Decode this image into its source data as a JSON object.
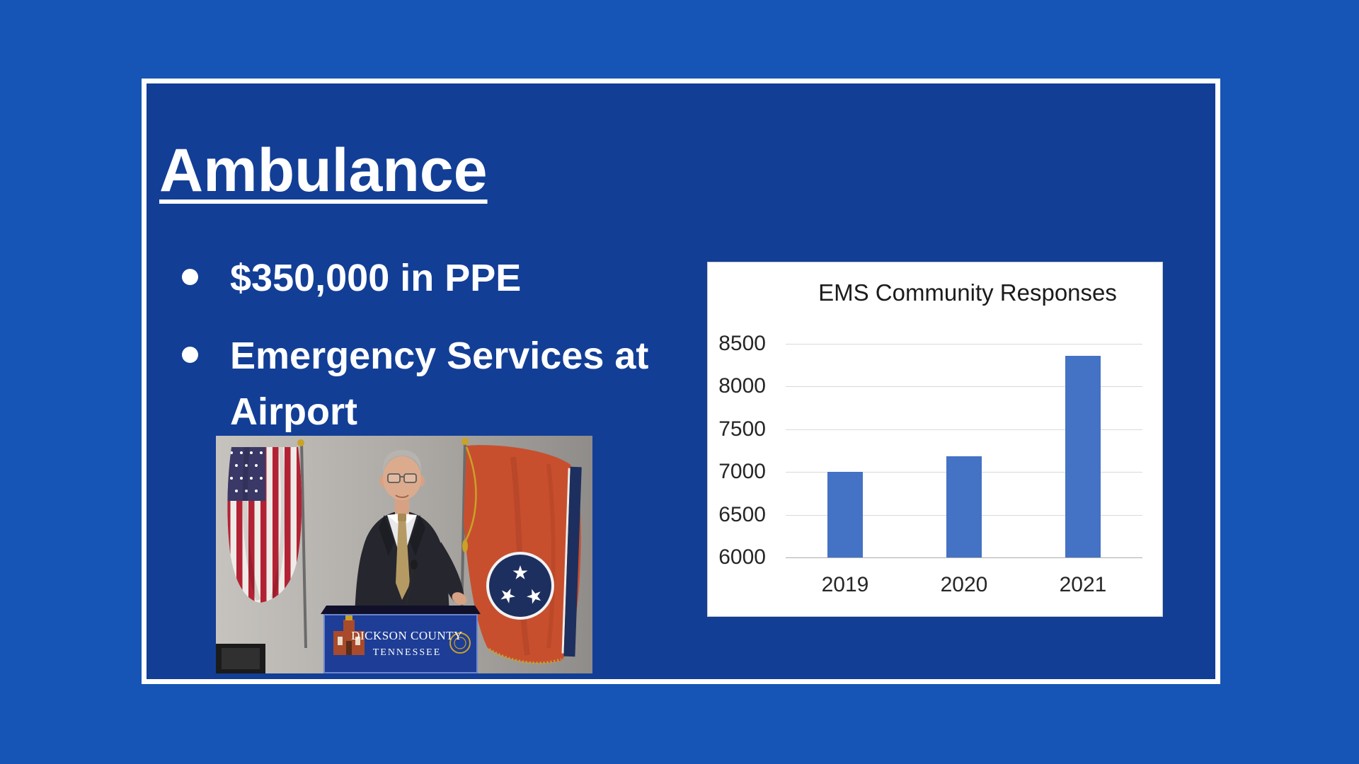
{
  "slide": {
    "title": "Ambulance",
    "bullets": [
      "$350,000 in PPE",
      "Emergency Services at Airport"
    ],
    "photo": {
      "podium_line1": "DICKSON COUNTY",
      "podium_line2": "TENNESSEE"
    }
  },
  "chart_data": {
    "type": "bar",
    "title": "EMS Community Responses",
    "categories": [
      "2019",
      "2020",
      "2021"
    ],
    "values": [
      7000,
      7180,
      8360
    ],
    "ylim": [
      6000,
      8500
    ],
    "yticks": [
      6000,
      6500,
      7000,
      7500,
      8000,
      8500
    ],
    "xlabel": "",
    "ylabel": "",
    "grid": true,
    "legend": false,
    "bar_color": "#4472c4"
  },
  "colors": {
    "background_blue": "#1655b5",
    "slide_blue": "#123e96",
    "frame_border": "#ffffff",
    "bar_blue": "#4472c4",
    "podium_blue": "#1e3d96",
    "flag_red": "#b22234",
    "tn_flag_orange": "#c84f2e"
  }
}
